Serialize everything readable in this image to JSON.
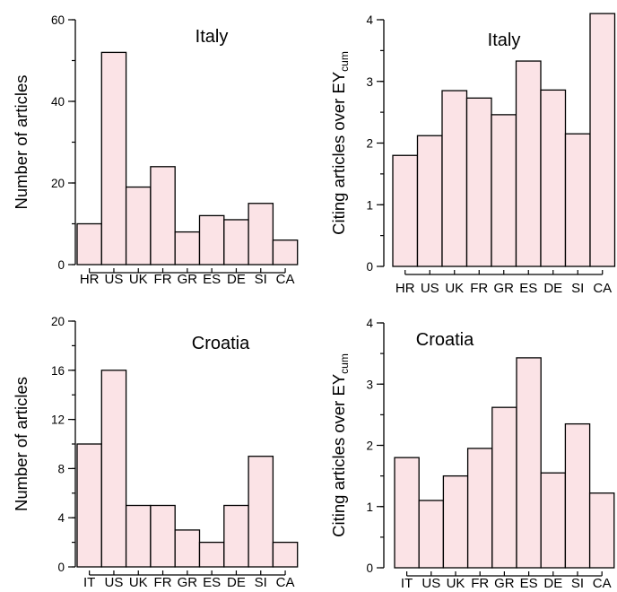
{
  "chart_data": [
    {
      "type": "bar",
      "title": "Italy",
      "ylabel": "Number of articles",
      "categories": [
        "HR",
        "US",
        "UK",
        "FR",
        "GR",
        "ES",
        "DE",
        "SI",
        "CA"
      ],
      "values": [
        10,
        52,
        19,
        24,
        8,
        12,
        11,
        15,
        6
      ],
      "ylim": [
        0,
        60
      ],
      "yticks": [
        0,
        20,
        40,
        60
      ],
      "yticks_labels": [
        "0",
        "20",
        "40",
        "60"
      ],
      "minor_step": 10,
      "grid": false
    },
    {
      "type": "bar",
      "title": "Italy",
      "ylabel": "Citing articles over EY",
      "ylabel_sub": "cum",
      "categories": [
        "HR",
        "US",
        "UK",
        "FR",
        "GR",
        "ES",
        "DE",
        "SI",
        "CA"
      ],
      "values": [
        1.8,
        2.12,
        2.85,
        2.73,
        2.46,
        3.33,
        2.86,
        2.15,
        4.1
      ],
      "ylim": [
        0,
        4
      ],
      "yticks": [
        0,
        1,
        2,
        3,
        4
      ],
      "yticks_labels": [
        "0",
        "1",
        "2",
        "3",
        "4"
      ],
      "minor_step": 0.5,
      "grid": false
    },
    {
      "type": "bar",
      "title": "Croatia",
      "ylabel": "Number of articles",
      "categories": [
        "IT",
        "US",
        "UK",
        "FR",
        "GR",
        "ES",
        "DE",
        "SI",
        "CA"
      ],
      "values": [
        10,
        16,
        5,
        5,
        3,
        2,
        5,
        9,
        2
      ],
      "ylim": [
        0,
        20
      ],
      "yticks": [
        0,
        4,
        8,
        12,
        16,
        20
      ],
      "yticks_labels": [
        "0",
        "4",
        "8",
        "12",
        "16",
        "20"
      ],
      "minor_step": 2,
      "grid": false
    },
    {
      "type": "bar",
      "title": "Croatia",
      "ylabel": "Citing articles over EY",
      "ylabel_sub": "cum",
      "categories": [
        "IT",
        "US",
        "UK",
        "FR",
        "GR",
        "ES",
        "DE",
        "SI",
        "CA"
      ],
      "values": [
        1.8,
        1.1,
        1.5,
        1.95,
        2.62,
        3.43,
        1.55,
        2.35,
        1.22
      ],
      "ylim": [
        0,
        4
      ],
      "yticks": [
        0,
        1,
        2,
        3,
        4
      ],
      "yticks_labels": [
        "0",
        "1",
        "2",
        "3",
        "4"
      ],
      "minor_step": 0.5,
      "grid": false
    }
  ],
  "colors": {
    "bar_fill": "#fbe3e6",
    "bar_stroke": "#000000"
  }
}
